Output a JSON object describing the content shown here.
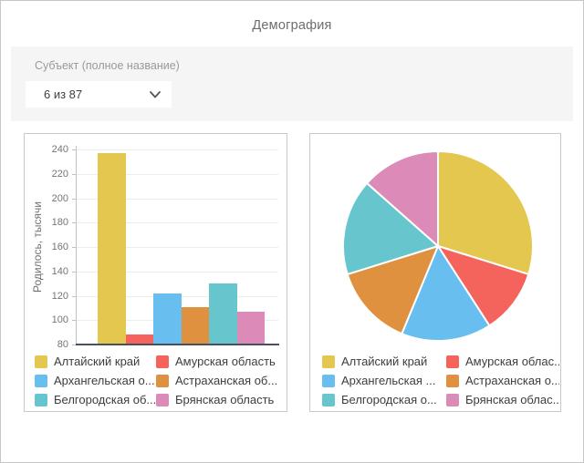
{
  "header": {
    "title": "Демография"
  },
  "filter": {
    "label": "Субъект (полное название)",
    "value": "6 из 87"
  },
  "palette": [
    "#E4C74E",
    "#F4645C",
    "#68BEEF",
    "#E0913F",
    "#67C5CE",
    "#DC8BB8"
  ],
  "colors": {
    "panel_bg": "#f5f5f5",
    "card_border": "#c9c9c9",
    "grid_line": "#ededed",
    "axis_line": "#c2c2c2",
    "baseline": "#46505e",
    "tick_text": "#757575",
    "legend_text": "#3d3d3d",
    "title_text": "#6d6d6d"
  },
  "chart_data": [
    {
      "type": "bar",
      "categories": [
        "Алтайский край",
        "Амурская область",
        "Архангельская о...",
        "Астраханская об...",
        "Белгородская об...",
        "Брянская область"
      ],
      "values": [
        237,
        88,
        122,
        111,
        130,
        107
      ],
      "title": "",
      "xlabel": "",
      "ylabel": "Родилось, тысячи",
      "ylim": [
        80,
        240
      ],
      "ytick_step": 20,
      "grid": true,
      "legend_position": "bottom",
      "legend_labels": [
        "Алтайский край",
        "Амурская область",
        "Архангельская о...",
        "Астраханская об...",
        "Белгородская об...",
        "Брянская область"
      ]
    },
    {
      "type": "pie",
      "categories": [
        "Алтайский край",
        "Амурская облас...",
        "Архангельская ...",
        "Астраханская о...",
        "Белгородская о...",
        "Брянская облас..."
      ],
      "values": [
        237,
        88,
        122,
        111,
        130,
        107
      ],
      "start_angle_deg": -90,
      "direction": "clockwise",
      "legend_position": "bottom",
      "legend_labels": [
        "Алтайский край",
        "Амурская облас...",
        "Архангельская ...",
        "Астраханская о...",
        "Белгородская о...",
        "Брянская облас..."
      ]
    }
  ]
}
